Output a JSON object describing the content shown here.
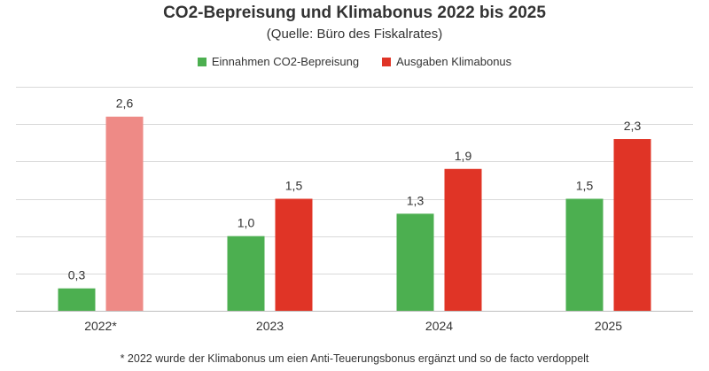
{
  "chart_data": {
    "type": "bar",
    "title": "CO2-Bepreisung und Klimabonus 2022 bis 2025",
    "subtitle": "(Quelle: Büro des Fiskalrates)",
    "categories": [
      "2022*",
      "2023",
      "2024",
      "2025"
    ],
    "series": [
      {
        "name": "Einnahmen CO2-Bepreisung",
        "color": "#4caf50",
        "values": [
          0.3,
          1.0,
          1.3,
          1.5
        ],
        "labels": [
          "0,3",
          "1,0",
          "1,3",
          "1,5"
        ]
      },
      {
        "name": "Ausgaben Klimabonus",
        "color": "#e03426",
        "highlight_color": "#ee8a86",
        "values": [
          2.6,
          1.5,
          1.9,
          2.3
        ],
        "labels": [
          "2,6",
          "1,5",
          "1,9",
          "2,3"
        ]
      }
    ],
    "ylim": [
      0,
      3.0
    ],
    "gridlines": [
      0.5,
      1.0,
      1.5,
      2.0,
      2.5,
      3.0
    ],
    "grid": true,
    "legend_position": "top-center",
    "footnote": "* 2022 wurde der Klimabonus um eien Anti-Teuerungsbonus ergänzt und so de facto verdoppelt"
  }
}
